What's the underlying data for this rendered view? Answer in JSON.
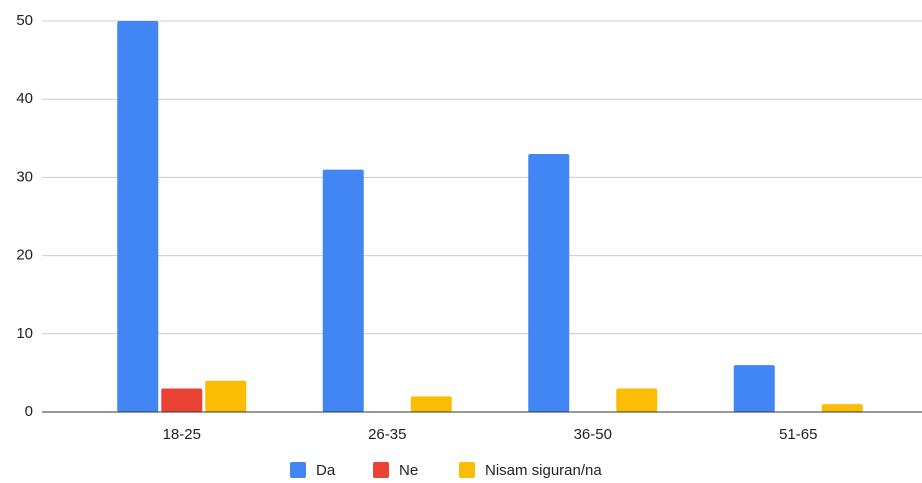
{
  "chart_data": {
    "type": "bar",
    "categories": [
      "18-25",
      "26-35",
      "36-50",
      "51-65"
    ],
    "series": [
      {
        "name": "Da",
        "color": "#4285f4",
        "values": [
          50,
          31,
          33,
          6
        ]
      },
      {
        "name": "Ne",
        "color": "#ea4335",
        "values": [
          3,
          0,
          0,
          0
        ]
      },
      {
        "name": "Nisam siguran/na",
        "color": "#fbbc04",
        "values": [
          4,
          2,
          3,
          1
        ]
      }
    ],
    "ylim": [
      0,
      50
    ],
    "yticks": [
      0,
      10,
      20,
      30,
      40,
      50
    ],
    "grid": true,
    "legend": "bottom"
  }
}
